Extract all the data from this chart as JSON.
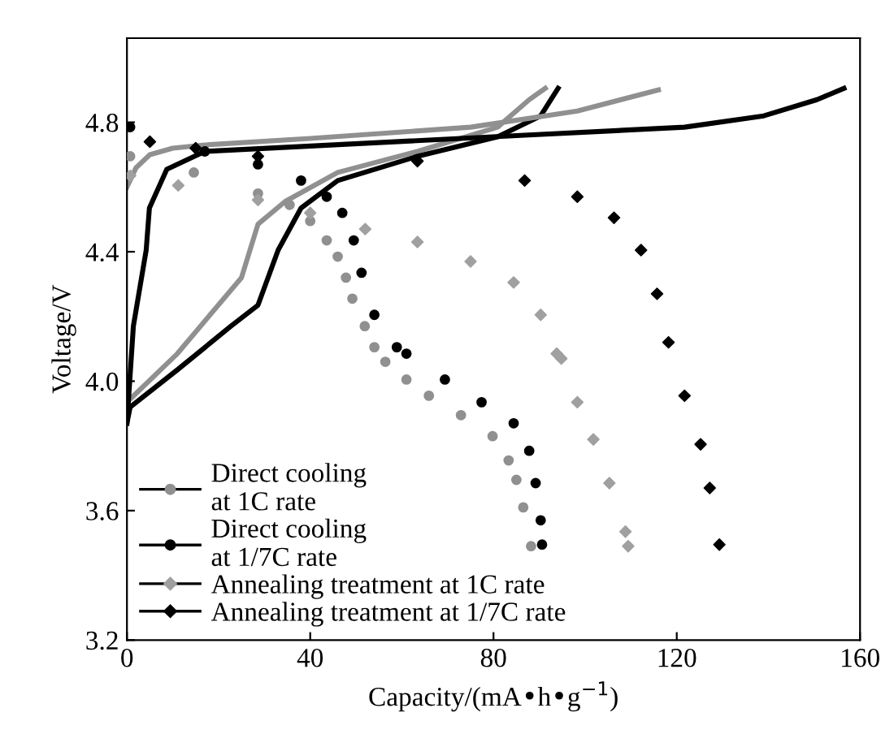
{
  "chart_data": {
    "type": "scatter",
    "xlabel": "Capacity/(mA•h•g$^{−1}$)",
    "ylabel": "Voltage/V",
    "xlim": [
      0,
      160
    ],
    "ylim": [
      3.2,
      5.06
    ],
    "xticks": [
      0,
      40,
      80,
      120,
      160
    ],
    "yticks": [
      {
        "value": 3.2,
        "label": "3.2"
      },
      {
        "value": 3.6,
        "label": "3.6"
      },
      {
        "value": 4.0,
        "label": "4.0"
      },
      {
        "value": 4.4,
        "label": "4.4"
      },
      {
        "value": 4.8,
        "label": "4.8"
      }
    ],
    "legend": "bottom left",
    "series": [
      {
        "type": "line",
        "color": "#909090",
        "x": [
          0,
          11,
          25,
          28.6,
          34.5,
          46,
          63.4,
          80.9,
          87.8,
          91.3
        ],
        "values": [
          3.935,
          4.085,
          4.32,
          4.485,
          4.555,
          4.645,
          4.71,
          4.785,
          4.87,
          4.905
        ]
      },
      {
        "type": "line",
        "color": "#000000",
        "x": [
          0,
          0.7,
          11,
          22.7,
          28.6,
          33,
          38,
          46,
          63.4,
          80.9,
          90.3,
          94.1
        ],
        "values": [
          3.87,
          3.92,
          4.035,
          4.17,
          4.235,
          4.405,
          4.535,
          4.62,
          4.695,
          4.755,
          4.82,
          4.905
        ]
      },
      {
        "type": "line",
        "color": "#909090",
        "x": [
          0,
          2,
          5,
          10,
          17,
          40,
          75,
          98.3,
          116
        ],
        "values": [
          4.6,
          4.66,
          4.7,
          4.72,
          4.73,
          4.75,
          4.785,
          4.835,
          4.9
        ]
      },
      {
        "type": "line",
        "color": "#000000",
        "x": [
          0,
          1.4,
          4.2,
          4.9,
          8.7,
          17,
          86.8,
          121.7,
          139,
          150.6,
          156.5
        ],
        "values": [
          3.87,
          4.17,
          4.405,
          4.535,
          4.655,
          4.71,
          4.76,
          4.785,
          4.82,
          4.87,
          4.905
        ]
      },
      {
        "name": "Direct cooling\nat 1C rate",
        "color": "#909090",
        "marker": "circle",
        "x": [
          0.7,
          14.6,
          28.6,
          35.5,
          40,
          43.6,
          46,
          47.8,
          49.2,
          51.9,
          54,
          56.4,
          61,
          65.9,
          72.9,
          79.8,
          83.3,
          85,
          86.5,
          88.2
        ],
        "values": [
          4.695,
          4.645,
          4.58,
          4.545,
          4.495,
          4.435,
          4.385,
          4.32,
          4.255,
          4.17,
          4.105,
          4.06,
          4.005,
          3.955,
          3.895,
          3.83,
          3.755,
          3.695,
          3.61,
          3.49
        ]
      },
      {
        "name": "Direct cooling\nat 1/7C rate",
        "color": "#000000",
        "marker": "circle",
        "x": [
          0.7,
          17,
          28.6,
          38,
          43.6,
          47,
          49.5,
          51.2,
          54,
          58.9,
          61,
          69.4,
          77.4,
          84.4,
          87.8,
          89.2,
          90.3,
          90.6
        ],
        "values": [
          4.785,
          4.71,
          4.67,
          4.62,
          4.57,
          4.52,
          4.435,
          4.335,
          4.205,
          4.105,
          4.085,
          4.005,
          3.935,
          3.87,
          3.785,
          3.685,
          3.57,
          3.495
        ]
      },
      {
        "name": "Annealing treatment at 1C rate",
        "color": "#a0a0a0",
        "marker": "diamond",
        "x": [
          0.7,
          11.2,
          28.6,
          40,
          52,
          63.4,
          75,
          84.4,
          90.3,
          93.8,
          94.8,
          98.3,
          101.8,
          105.3,
          108.8,
          109.4
        ],
        "values": [
          4.635,
          4.605,
          4.56,
          4.52,
          4.47,
          4.43,
          4.37,
          4.305,
          4.205,
          4.085,
          4.07,
          3.935,
          3.82,
          3.685,
          3.535,
          3.49
        ]
      },
      {
        "name": "Annealing treatment at 1/7C rate",
        "color": "#000000",
        "marker": "diamond",
        "x": [
          5,
          15,
          28.6,
          63.4,
          86.8,
          98.3,
          106.3,
          112.2,
          115.7,
          118.2,
          121.7,
          125.2,
          127.2,
          129.3
        ],
        "values": [
          4.74,
          4.72,
          4.695,
          4.68,
          4.62,
          4.57,
          4.505,
          4.405,
          4.27,
          4.12,
          3.955,
          3.805,
          3.67,
          3.495
        ]
      }
    ]
  }
}
